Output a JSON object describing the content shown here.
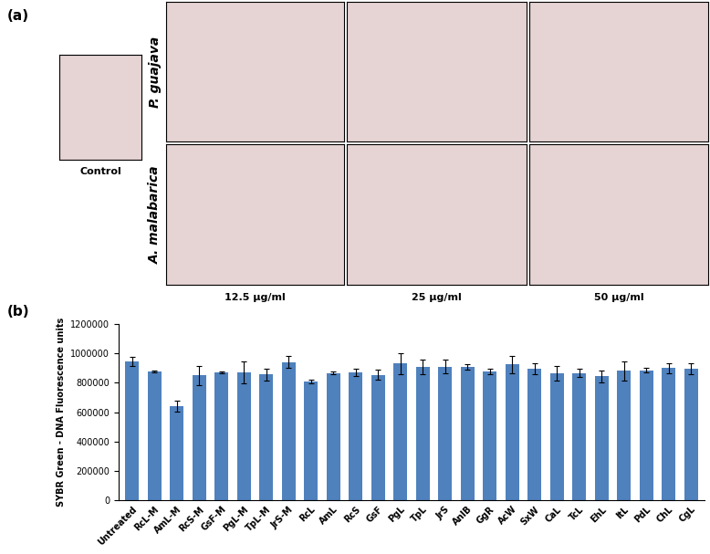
{
  "panel_a": {
    "label": "(a)",
    "control": "Control",
    "rows": [
      "P. guajava",
      "A. malabarica"
    ],
    "columns": [
      "12.5 μg/ml",
      "25 μg/ml",
      "50 μg/ml"
    ]
  },
  "chart_data": {
    "type": "bar",
    "annotations": [
      "(b)"
    ],
    "y_label": "SYBR Green - DNA Fluorescence units",
    "categories": [
      "Untreated",
      "RcL-M",
      "AmL-M",
      "RcS-M",
      "GsF-M",
      "PgL-M",
      "TpL-M",
      "JrS-M",
      "RcL",
      "AmL",
      "RcS",
      "GsF",
      "PgL",
      "TpL",
      "JrS",
      "AnlB",
      "GgR",
      "AcW",
      "SxW",
      "CaL",
      "TcL",
      "EhL",
      "ItL",
      "PdL",
      "ChL",
      "CgL"
    ],
    "values": [
      945000,
      878000,
      640000,
      850000,
      870000,
      868000,
      855000,
      940000,
      808000,
      865000,
      872000,
      853000,
      930000,
      905000,
      910000,
      910000,
      878000,
      925000,
      895000,
      865000,
      865000,
      843000,
      880000,
      885000,
      900000,
      893000
    ],
    "errors": [
      30000,
      8000,
      35000,
      65000,
      5000,
      75000,
      40000,
      40000,
      15000,
      10000,
      25000,
      35000,
      70000,
      50000,
      45000,
      18000,
      20000,
      60000,
      35000,
      50000,
      28000,
      40000,
      65000,
      15000,
      35000,
      37000
    ],
    "color": "#4f81bd",
    "ylim": [
      0,
      1200000
    ],
    "yticks": [
      0,
      200000,
      400000,
      600000,
      800000,
      1000000,
      1200000
    ],
    "grid": false
  }
}
